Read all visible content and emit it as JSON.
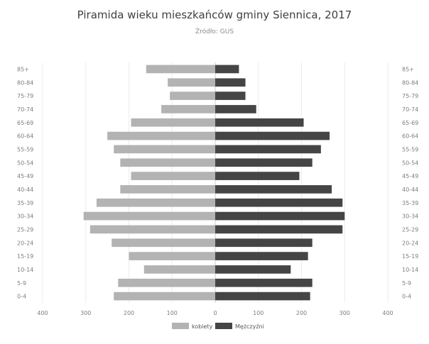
{
  "chart_data": {
    "type": "bar",
    "orientation": "horizontal",
    "title": "Piramida wieku mieszkańców gminy Siennica, 2017",
    "subtitle": "Źródło: GUS",
    "categories": [
      "0-4",
      "5-9",
      "10-14",
      "15-19",
      "20-24",
      "25-29",
      "30-34",
      "35-39",
      "40-44",
      "45-49",
      "50-54",
      "55-59",
      "60-64",
      "65-69",
      "70-74",
      "75-79",
      "80-84",
      "85+"
    ],
    "series": [
      {
        "name": "kobiety",
        "color": "#b3b3b3",
        "values": [
          -235,
          -225,
          -165,
          -200,
          -240,
          -290,
          -305,
          -275,
          -220,
          -195,
          -220,
          -235,
          -250,
          -195,
          -125,
          -105,
          -110,
          -160
        ]
      },
      {
        "name": "Mężczyźni",
        "color": "#454545",
        "values": [
          220,
          225,
          175,
          215,
          225,
          295,
          300,
          295,
          270,
          195,
          225,
          245,
          265,
          205,
          95,
          70,
          70,
          55
        ]
      }
    ],
    "xlim": [
      -400,
      400
    ],
    "x_ticks": [
      -400,
      -300,
      -200,
      -100,
      0,
      100,
      200,
      300,
      400
    ],
    "x_tick_labels": [
      "400",
      "300",
      "200",
      "100",
      "0",
      "100",
      "200",
      "300",
      "400"
    ],
    "grid": true,
    "legend_position": "bottom"
  }
}
